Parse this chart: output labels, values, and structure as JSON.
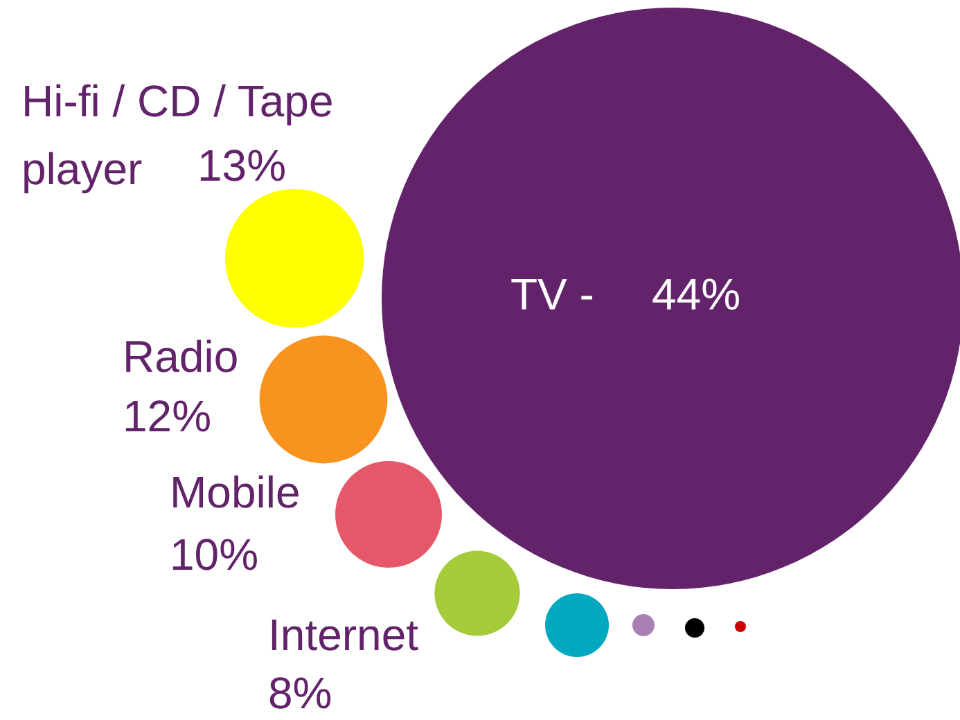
{
  "chart_data": {
    "type": "other",
    "categories": [
      "TV -",
      "Hi-fi / CD / Tape\nplayer",
      "Radio",
      "Mobile",
      "Internet"
    ],
    "values": [
      44,
      13,
      12,
      10,
      8
    ],
    "value_labels": [
      "44%",
      "13%",
      "12%",
      "10%",
      "8%"
    ],
    "colors": [
      "#62236a",
      "#ffff00",
      "#f7931e",
      "#e5586a",
      "#a4cc3a"
    ]
  }
}
